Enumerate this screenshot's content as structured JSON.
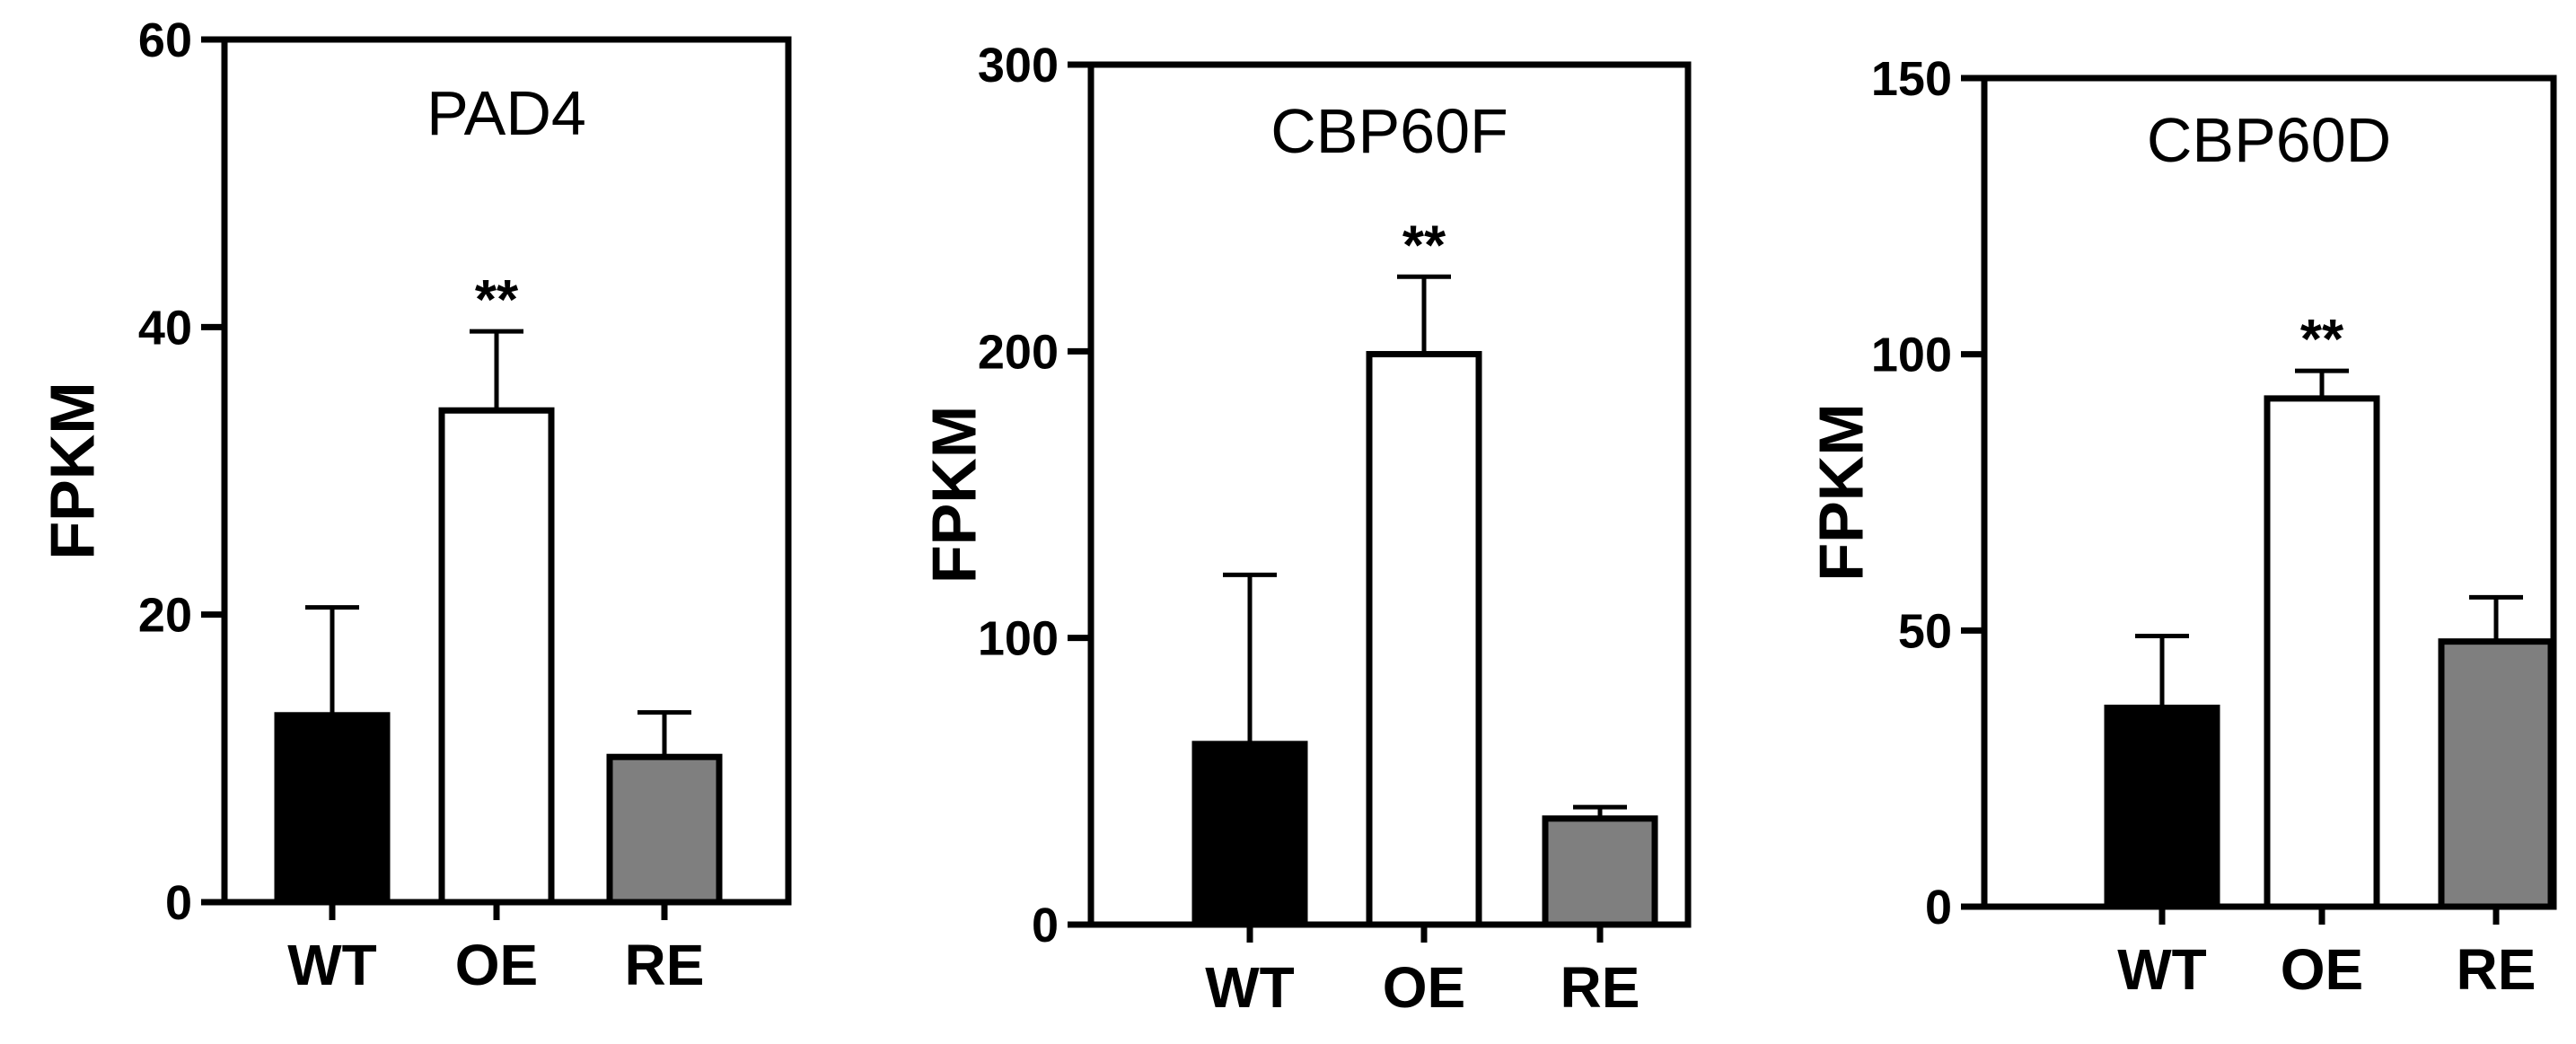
{
  "chart_data": [
    {
      "type": "bar",
      "title": "PAD4",
      "ylabel": "FPKM",
      "xlabel": "",
      "ylim": [
        0,
        60
      ],
      "yticks": [
        0,
        20,
        40,
        60
      ],
      "categories": [
        "WT",
        "OE",
        "RE"
      ],
      "values": [
        13,
        34.2,
        10.1
      ],
      "errors": [
        7.5,
        5.5,
        3.1
      ],
      "significance": [
        "",
        "**",
        ""
      ],
      "colors": [
        "#000000",
        "#ffffff",
        "#7f7f7f"
      ],
      "grid": false
    },
    {
      "type": "bar",
      "title": "CBP60F",
      "ylabel": "FPKM",
      "xlabel": "",
      "ylim": [
        0,
        300
      ],
      "yticks": [
        0,
        100,
        200,
        300
      ],
      "categories": [
        "WT",
        "OE",
        "RE"
      ],
      "values": [
        63,
        199,
        37
      ],
      "errors": [
        59,
        27,
        4
      ],
      "significance": [
        "",
        "**",
        ""
      ],
      "colors": [
        "#000000",
        "#ffffff",
        "#7f7f7f"
      ],
      "grid": false
    },
    {
      "type": "bar",
      "title": "CBP60D",
      "ylabel": "FPKM",
      "xlabel": "",
      "ylim": [
        0,
        150
      ],
      "yticks": [
        0,
        50,
        100,
        150
      ],
      "categories": [
        "WT",
        "OE",
        "RE"
      ],
      "values": [
        36,
        92,
        48
      ],
      "errors": [
        13,
        5,
        8
      ],
      "significance": [
        "",
        "**",
        ""
      ],
      "colors": [
        "#000000",
        "#ffffff",
        "#7f7f7f"
      ],
      "grid": false
    }
  ]
}
